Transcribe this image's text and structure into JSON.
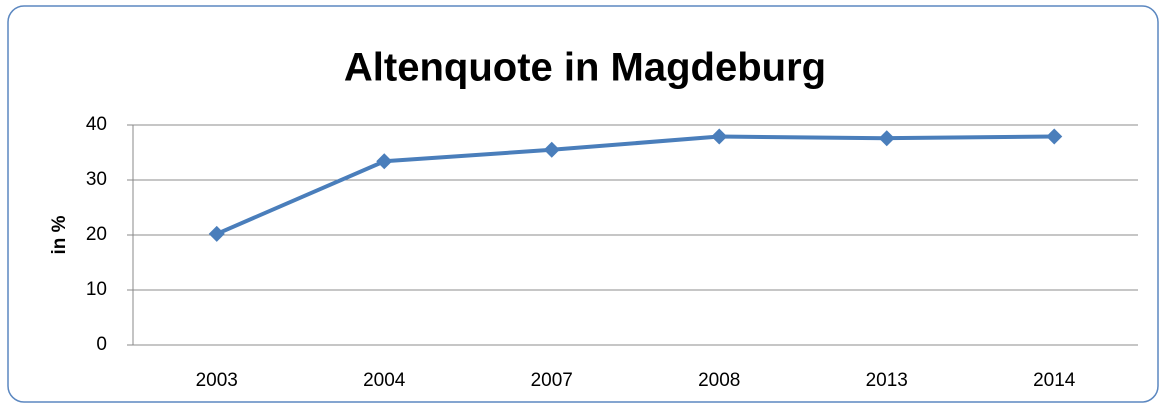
{
  "chart_data": {
    "type": "line",
    "title": "Altenquote in Magdeburg",
    "y_label": "in %",
    "categories": [
      "2003",
      "2004",
      "2007",
      "2008",
      "2013",
      "2014"
    ],
    "values": [
      20.2,
      33.4,
      35.5,
      37.9,
      37.6,
      37.9
    ],
    "color": "#4a7ebb",
    "ylim": [
      0,
      40
    ],
    "yticks": [
      0,
      10,
      20,
      30,
      40
    ],
    "grid": true
  }
}
